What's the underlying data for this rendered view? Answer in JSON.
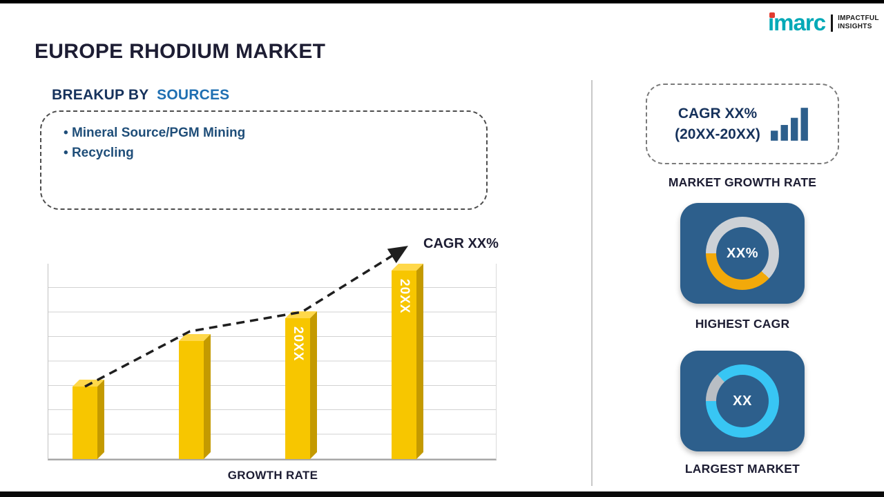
{
  "page": {
    "title": "EUROPE RHODIUM MARKET"
  },
  "logo": {
    "brand": "imarc",
    "tagline_line1": "IMPACTFUL",
    "tagline_line2": "INSIGHTS"
  },
  "breakup": {
    "heading_prefix": "BREAKUP BY",
    "heading_highlight": "SOURCES",
    "items": [
      "Mineral Source/PGM Mining",
      "Recycling"
    ]
  },
  "sidebar": {
    "cagr_box": {
      "line1": "CAGR XX%",
      "line2": "(20XX-20XX)"
    },
    "market_growth_label": "MARKET GROWTH RATE",
    "highest_cagr_label": "HIGHEST CAGR",
    "largest_market_label": "LARGEST MARKET"
  },
  "colors": {
    "accent_gold": "#F7C600",
    "gold_dark": "#C49A00",
    "gold_light": "#FFD84A",
    "navy_text": "#1D1D33",
    "heading_navy": "#16325C",
    "heading_blue": "#1F6FB2",
    "bullet_blue": "#1F4E79",
    "tile_blue": "#2D5F8C",
    "logo_teal": "#00A9B7",
    "logo_red": "#E23B30"
  },
  "chart_data": [
    {
      "type": "bar",
      "id": "growth_rate_bars",
      "title": "",
      "categories": [
        "",
        "",
        "20XX",
        "20XX"
      ],
      "values": [
        35,
        57,
        68,
        91
      ],
      "xlabel": "GROWTH RATE",
      "ylabel": "",
      "ylim": [
        0,
        100
      ],
      "grid": true,
      "annotation": "CAGR XX%",
      "trend": "rising-dashed-arrow",
      "bar_color": "#F7C600"
    },
    {
      "type": "donut",
      "id": "highest_cagr",
      "center_label": "XX%",
      "track_percent": 62,
      "track_color": "#CDD1D6",
      "segment_color": "#F2A90A",
      "caption": "HIGHEST CAGR"
    },
    {
      "type": "donut",
      "id": "largest_market",
      "center_label": "XX",
      "track_percent": 13,
      "track_color": "#B9BEC4",
      "segment_color": "#38C6F4",
      "caption": "LARGEST MARKET"
    }
  ]
}
